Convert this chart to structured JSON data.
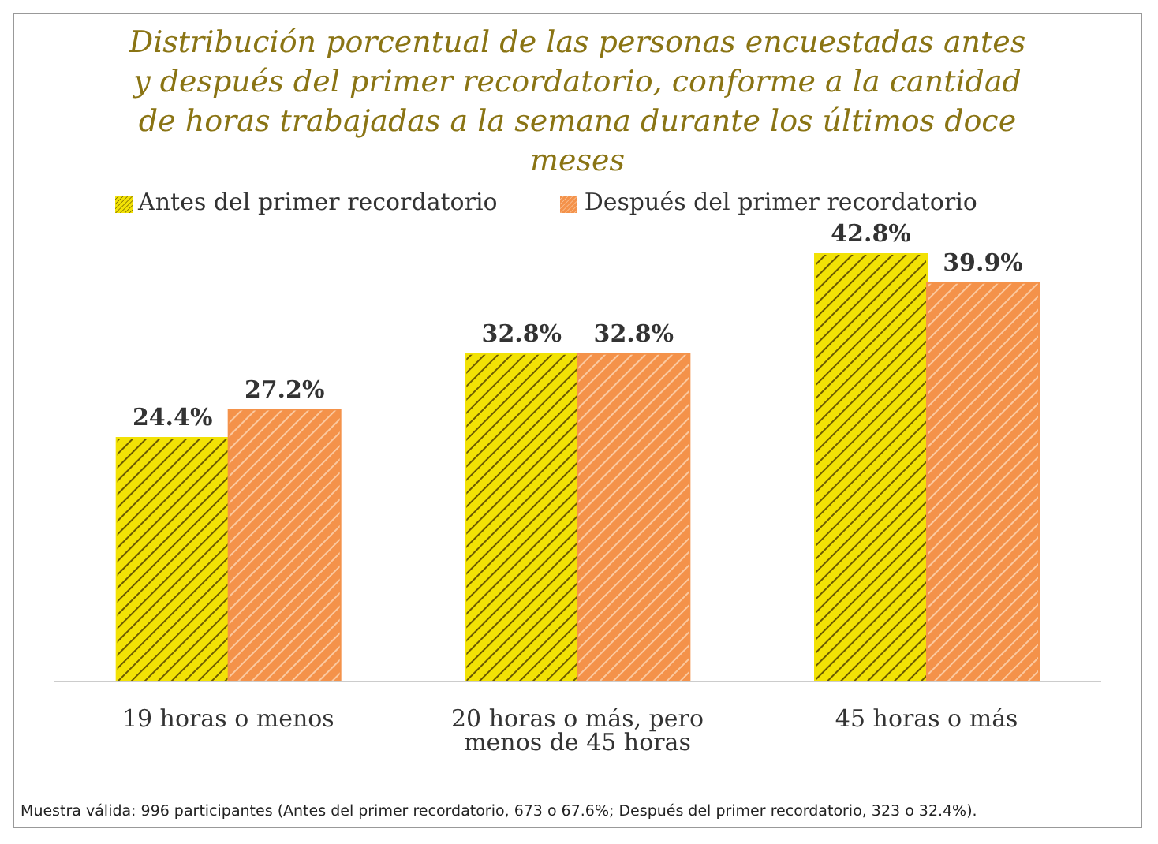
{
  "chart_data": {
    "type": "bar",
    "title": "Distribución porcentual de las personas encuestadas antes y después del primer recordatorio, conforme a la cantidad de horas trabajadas a la semana durante los últimos doce meses",
    "categories": [
      "19 horas o menos",
      "20 horas o más, pero menos de 45 horas",
      "45 horas o más"
    ],
    "series": [
      {
        "name": "Antes del primer recordatorio",
        "color": "#f2e205",
        "values": [
          24.4,
          32.8,
          42.8
        ],
        "value_labels": [
          "24.4%",
          "32.8%",
          "42.8%"
        ]
      },
      {
        "name": "Después del primer recordatorio",
        "color": "#f4924a",
        "values": [
          27.2,
          32.8,
          39.9
        ],
        "value_labels": [
          "27.2%",
          "32.8%",
          "39.9%"
        ]
      }
    ],
    "legend": "top",
    "annotations": [
      "Muestra válida: 996 participantes (Antes del primer recordatorio, 673 o 67.6%; Después del primer recordatorio, 323 o 32.4%)."
    ]
  }
}
